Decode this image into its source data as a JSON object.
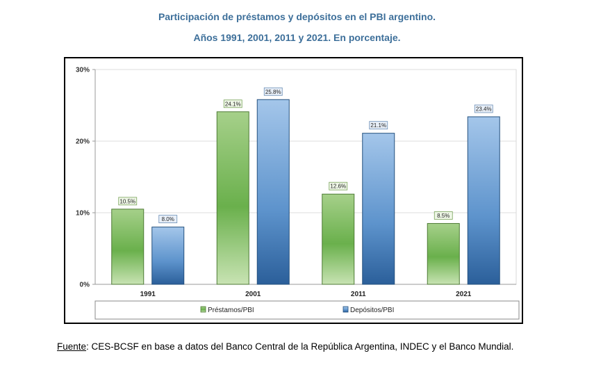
{
  "title_line1": "Participación de préstamos y depósitos en el PBI argentino.",
  "title_line2": "Años 1991, 2001, 2011 y 2021. En porcentaje.",
  "source": {
    "label": "Fuente",
    "separator": ":",
    "text": " CES-BCSF en base a datos del Banco Central de la República Argentina, INDEC y el Banco Mundial."
  },
  "chart_data": {
    "type": "bar",
    "title": "",
    "xlabel": "",
    "ylabel": "",
    "ylim": [
      0,
      30
    ],
    "y_ticks": [
      0,
      10,
      20,
      30
    ],
    "y_tick_labels": [
      "0%",
      "10%",
      "20%",
      "30%"
    ],
    "grid": true,
    "legend_position": "bottom",
    "categories": [
      "1991",
      "2001",
      "2011",
      "2021"
    ],
    "series": [
      {
        "name": "Préstamos/PBI",
        "values": [
          10.5,
          24.1,
          12.6,
          8.5
        ],
        "data_labels": [
          "10.5%",
          "24.1%",
          "12.6%",
          "8.5%"
        ],
        "color": "#6ab04c",
        "label_border": "#7aa35a",
        "label_fill": "#eef6e6"
      },
      {
        "name": "Depósitos/PBI",
        "values": [
          8.0,
          25.8,
          21.1,
          23.4
        ],
        "data_labels": [
          "8.0%",
          "25.8%",
          "21.1%",
          "23.4%"
        ],
        "color": "#3a78b8",
        "label_border": "#6a8db5",
        "label_fill": "#e8eff8"
      }
    ]
  }
}
